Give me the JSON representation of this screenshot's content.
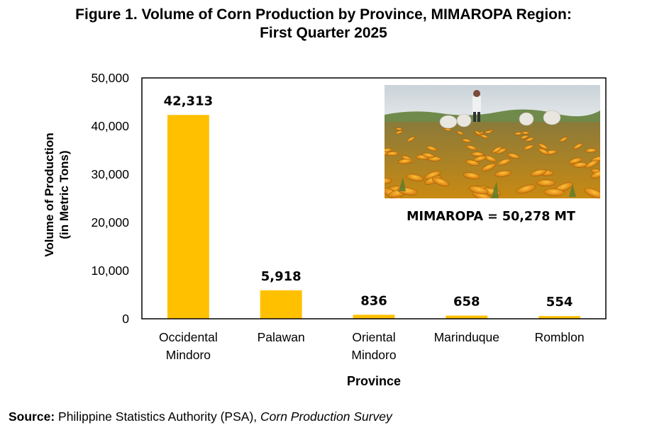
{
  "figure": {
    "title_line1": "Figure 1. Volume of Corn Production by Province, MIMAROPA Region:",
    "title_line2": "First Quarter 2025"
  },
  "chart_data": {
    "type": "bar",
    "categories": [
      "Occidental Mindoro",
      "Palawan",
      "Oriental Mindoro",
      "Marinduque",
      "Romblon"
    ],
    "category_lines": [
      [
        "Occidental",
        "Mindoro"
      ],
      [
        "Palawan"
      ],
      [
        "Oriental",
        "Mindoro"
      ],
      [
        "Marinduque"
      ],
      [
        "Romblon"
      ]
    ],
    "values": [
      42313,
      5918,
      836,
      658,
      554
    ],
    "data_labels": [
      "42,313",
      "5,918",
      "836",
      "658",
      "554"
    ],
    "xlabel": "Province",
    "ylabel_line1": "Volume of Production",
    "ylabel_line2": "(in Metric Tons)",
    "ylim": [
      0,
      50000
    ],
    "yticks": [
      0,
      10000,
      20000,
      30000,
      40000,
      50000
    ],
    "ytick_labels": [
      "0",
      "10,000",
      "20,000",
      "30,000",
      "40,000",
      "50,000"
    ],
    "bar_color": "#FFC000",
    "grid": false,
    "annotation": "MIMAROPA = 50,278 MT"
  },
  "source": {
    "label": "Source:",
    "text": " Philippine Statistics Authority (PSA), ",
    "publication": "Corn Production Survey"
  }
}
